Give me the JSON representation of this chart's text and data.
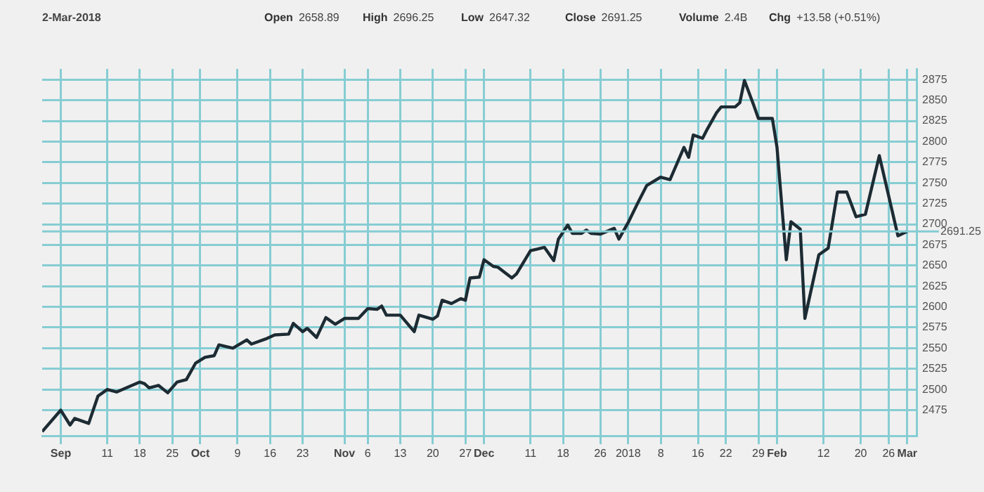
{
  "chart_data": {
    "type": "line",
    "title": "2-Mar-2018",
    "annotations": [
      "Open 2658.89",
      "High 2696.25",
      "Low 2647.32",
      "Close 2691.25",
      "Volume 2.4B",
      "Chg +13.58 (+0.51%)"
    ],
    "x": [
      "2017-08-28",
      "2017-09-01",
      "2017-09-03",
      "2017-09-04",
      "2017-09-07",
      "2017-09-09",
      "2017-09-11",
      "2017-09-13",
      "2017-09-18",
      "2017-09-19",
      "2017-09-20",
      "2017-09-22",
      "2017-09-24",
      "2017-09-26",
      "2017-09-28",
      "2017-09-30",
      "2017-10-02",
      "2017-10-04",
      "2017-10-05",
      "2017-10-08",
      "2017-10-11",
      "2017-10-12",
      "2017-10-15",
      "2017-10-17",
      "2017-10-20",
      "2017-10-21",
      "2017-10-23",
      "2017-10-24",
      "2017-10-26",
      "2017-10-28",
      "2017-10-30",
      "2017-11-01",
      "2017-11-04",
      "2017-11-06",
      "2017-11-08",
      "2017-11-09",
      "2017-11-10",
      "2017-11-13",
      "2017-11-16",
      "2017-11-17",
      "2017-11-20",
      "2017-11-21",
      "2017-11-22",
      "2017-11-24",
      "2017-11-26",
      "2017-11-27",
      "2017-11-28",
      "2017-11-30",
      "2017-12-01",
      "2017-12-03",
      "2017-12-04",
      "2017-12-07",
      "2017-12-08",
      "2017-12-11",
      "2017-12-14",
      "2017-12-16",
      "2017-12-17",
      "2017-12-19",
      "2017-12-20",
      "2017-12-22",
      "2017-12-23",
      "2017-12-24",
      "2017-12-26",
      "2017-12-29",
      "2017-12-30",
      "2018-01-01",
      "2018-01-03",
      "2018-01-05",
      "2018-01-08",
      "2018-01-10",
      "2018-01-13",
      "2018-01-14",
      "2018-01-15",
      "2018-01-17",
      "2018-01-18",
      "2018-01-20",
      "2018-01-21",
      "2018-01-24",
      "2018-01-25",
      "2018-01-26",
      "2018-01-28",
      "2018-01-29",
      "2018-02-01",
      "2018-02-02",
      "2018-02-04",
      "2018-02-05",
      "2018-02-07",
      "2018-02-08",
      "2018-02-11",
      "2018-02-13",
      "2018-02-15",
      "2018-02-17",
      "2018-02-19",
      "2018-02-21",
      "2018-02-24",
      "2018-02-28",
      "2018-03-02"
    ],
    "series": [
      {
        "color": "#1d2b33",
        "values": [
          2449,
          2475,
          2457,
          2465,
          2459,
          2492,
          2500,
          2497,
          2509,
          2507,
          2502,
          2505,
          2496,
          2509,
          2512,
          2532,
          2539,
          2541,
          2554,
          2550,
          2560,
          2555,
          2561,
          2566,
          2567,
          2580,
          2570,
          2574,
          2563,
          2587,
          2579,
          2586,
          2586,
          2598,
          2597,
          2601,
          2590,
          2590,
          2570,
          2590,
          2585,
          2589,
          2608,
          2604,
          2610,
          2608,
          2635,
          2636,
          2657,
          2649,
          2648,
          2635,
          2640,
          2668,
          2672,
          2656,
          2682,
          2699,
          2689,
          2689,
          2693,
          2689,
          2688,
          2695,
          2682,
          2702,
          2725,
          2747,
          2757,
          2754,
          2793,
          2781,
          2808,
          2804,
          2815,
          2835,
          2842,
          2842,
          2847,
          2874,
          2844,
          2828,
          2828,
          2793,
          2657,
          2703,
          2694,
          2586,
          2663,
          2671,
          2739,
          2739,
          2709,
          2712,
          2783,
          2686,
          2691.25
        ]
      }
    ],
    "xlim": [
      "2017-08-28",
      "2018-03-04"
    ],
    "xticks": [
      {
        "value": "2017-09-01",
        "label": "Sep"
      },
      {
        "value": "2017-09-11",
        "label": "11"
      },
      {
        "value": "2017-09-18",
        "label": "18"
      },
      {
        "value": "2017-09-25",
        "label": "25"
      },
      {
        "value": "2017-10-01",
        "label": "Oct"
      },
      {
        "value": "2017-10-09",
        "label": "9"
      },
      {
        "value": "2017-10-16",
        "label": "16"
      },
      {
        "value": "2017-10-23",
        "label": "23"
      },
      {
        "value": "2017-11-01",
        "label": "Nov"
      },
      {
        "value": "2017-11-06",
        "label": "6"
      },
      {
        "value": "2017-11-13",
        "label": "13"
      },
      {
        "value": "2017-11-20",
        "label": "20"
      },
      {
        "value": "2017-11-27",
        "label": "27"
      },
      {
        "value": "2017-12-01",
        "label": "Dec"
      },
      {
        "value": "2017-12-11",
        "label": "11"
      },
      {
        "value": "2017-12-18",
        "label": "18"
      },
      {
        "value": "2017-12-26",
        "label": "26"
      },
      {
        "value": "2018-01-01",
        "label": "2018"
      },
      {
        "value": "2018-01-08",
        "label": "8"
      },
      {
        "value": "2018-01-16",
        "label": "16"
      },
      {
        "value": "2018-01-22",
        "label": "22"
      },
      {
        "value": "2018-01-29",
        "label": "29"
      },
      {
        "value": "2018-02-02",
        "label": "Feb"
      },
      {
        "value": "2018-02-12",
        "label": "12"
      },
      {
        "value": "2018-02-20",
        "label": "20"
      },
      {
        "value": "2018-02-26",
        "label": "26"
      },
      {
        "value": "2018-03-02",
        "label": "Mar"
      }
    ],
    "ylim": [
      2444,
      2888
    ],
    "yticks": [
      2475,
      2500,
      2525,
      2550,
      2575,
      2600,
      2625,
      2650,
      2675,
      2700,
      2725,
      2750,
      2775,
      2800,
      2825,
      2850,
      2875
    ],
    "ref_lines": [
      {
        "axis": "y",
        "value": 2691.25,
        "label": "2691.25",
        "color": "#86cdd3"
      }
    ],
    "grid": true,
    "legend": false,
    "marker": "none",
    "line_style": "solid"
  }
}
